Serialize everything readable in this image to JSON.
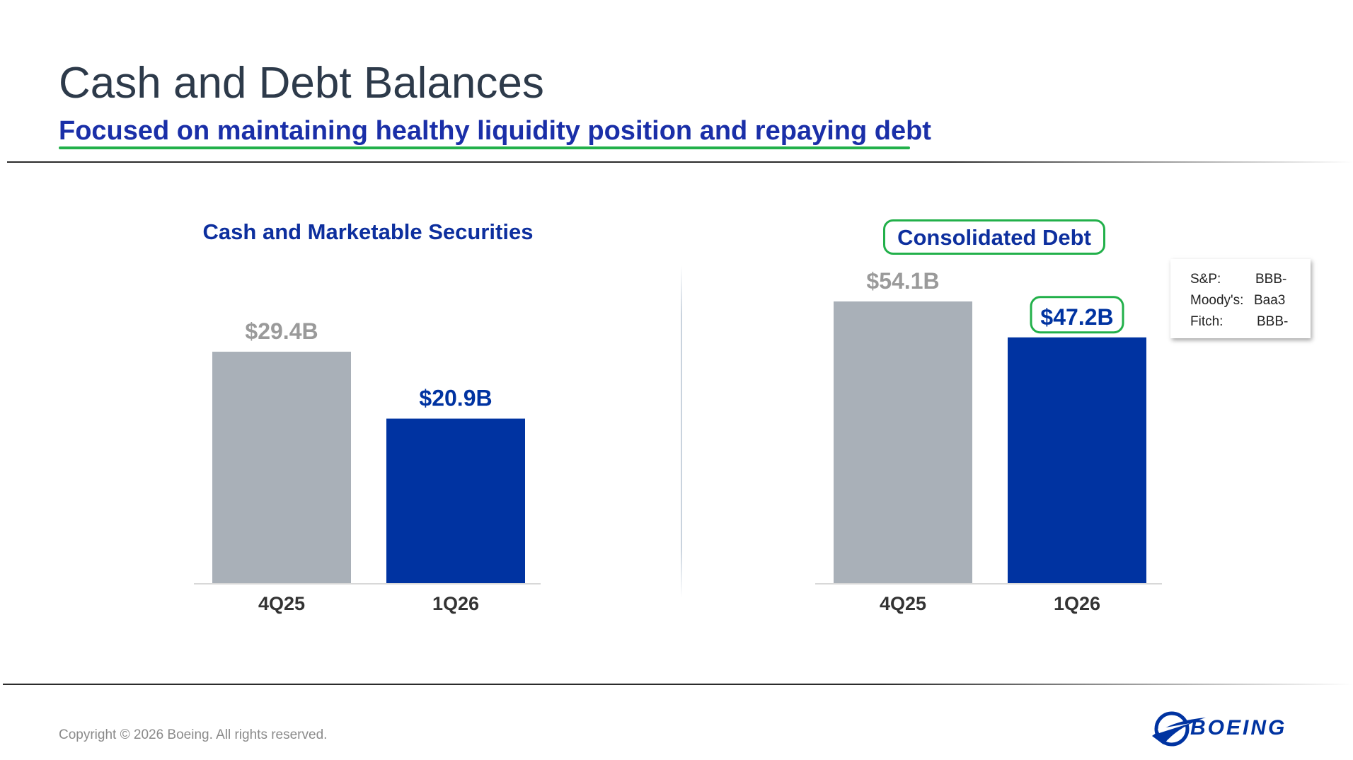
{
  "slide": {
    "title": "Cash and Debt Balances",
    "subtitle": "Focused on maintaining healthy liquidity position and repaying debt",
    "copyright": "Copyright © 2026 Boeing. All rights reserved.",
    "logo_text": "BOEING"
  },
  "colors": {
    "prior_bar": "#a9b0b8",
    "current_bar": "#0033a1",
    "prior_label": "#9a9a9a",
    "current_label": "#0033a1",
    "highlight": "#22b04a",
    "title": "#2d3a4a",
    "chart_title": "#0d2f9e"
  },
  "chart_data": [
    {
      "type": "bar",
      "title": "Cash and Marketable Securities",
      "categories": [
        "4Q25",
        "1Q26"
      ],
      "values": [
        29.4,
        20.9
      ],
      "value_labels": [
        "$29.4B",
        "$20.9B"
      ],
      "unit": "$B",
      "ylim": [
        0,
        33
      ],
      "grid": false,
      "legend": "none"
    },
    {
      "type": "bar",
      "title": "Consolidated Debt",
      "categories": [
        "4Q25",
        "1Q26"
      ],
      "values": [
        54.1,
        47.2
      ],
      "value_labels": [
        "$54.1B",
        "$47.2B"
      ],
      "unit": "$B",
      "ylim": [
        0,
        54.1
      ],
      "grid": false,
      "legend": "none",
      "highlighted": [
        "title",
        "1Q26 value label"
      ]
    }
  ],
  "credit_ratings": [
    {
      "agency": "S&P:",
      "rating": "BBB-"
    },
    {
      "agency": "Moody's:",
      "rating": "Baa3"
    },
    {
      "agency": "Fitch:",
      "rating": "BBB-"
    }
  ]
}
